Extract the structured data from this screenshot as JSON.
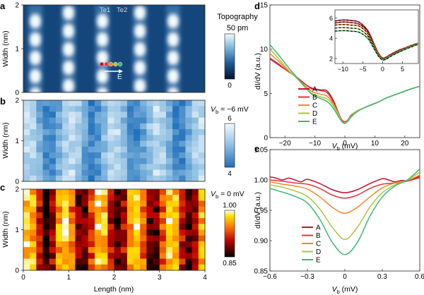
{
  "figure": {
    "panel_letters": [
      "a",
      "b",
      "c",
      "d",
      "e"
    ],
    "tip_labels": [
      "Te1",
      "Te2"
    ],
    "path_labels": {
      "start": "A",
      "end": "E"
    }
  },
  "colors": {
    "A": "#c8102e",
    "B": "#e0343c",
    "C": "#f08a24",
    "D": "#a8c83c",
    "E": "#3cb878",
    "dashed": "#000000",
    "axis": "#231f20"
  },
  "chart_data": [
    {
      "panel": "a",
      "type": "heatmap",
      "title": "",
      "colorbar_title": [
        "Topography",
        "50 pm"
      ],
      "colorbar_ticks": [
        "0"
      ],
      "xlim": [
        0,
        4
      ],
      "ylim": [
        0,
        2
      ],
      "ylabel": "Width (nm)",
      "yticks": [
        "0",
        "1",
        "2"
      ],
      "colormap": "blue"
    },
    {
      "panel": "b",
      "type": "heatmap",
      "colorbar_title": [
        "V",
        "b",
        " = −6 mV"
      ],
      "colorbar_ticks": [
        "6",
        "4"
      ],
      "xlim": [
        0,
        4
      ],
      "ylim": [
        0,
        2
      ],
      "ylabel": "Width (nm)",
      "yticks": [
        "0",
        "1",
        "2"
      ],
      "colormap": "blue"
    },
    {
      "panel": "c",
      "type": "heatmap",
      "colorbar_title": [
        "V",
        "b",
        " = 0 mV"
      ],
      "colorbar_ticks": [
        "1.00",
        "0.85"
      ],
      "xlim": [
        0,
        4
      ],
      "ylim": [
        0,
        2
      ],
      "xlabel": "Length (nm)",
      "ylabel": "Width (nm)",
      "xticks": [
        "0",
        "1",
        "2",
        "3",
        "4"
      ],
      "yticks": [
        "0",
        "1",
        "2"
      ],
      "colormap": "hot"
    },
    {
      "panel": "d",
      "type": "line",
      "xlabel": [
        "V",
        "b",
        " (mV)"
      ],
      "ylabel": "dI/dV (a.u.)",
      "xlim": [
        -25,
        25
      ],
      "ylim": [
        0,
        15
      ],
      "xticks": [
        "−20",
        "−10",
        "0",
        "10",
        "20"
      ],
      "yticks": [
        "0",
        "5",
        "10",
        "15"
      ],
      "legend": [
        "A",
        "B",
        "C",
        "D",
        "E"
      ],
      "series": [
        {
          "name": "A",
          "x": [
            -25,
            -22,
            -19,
            -16,
            -13,
            -11,
            -8,
            -6,
            -4,
            -2,
            -1,
            0,
            1,
            2,
            4,
            6,
            8,
            11,
            14,
            18,
            22,
            25
          ],
          "y": [
            8.9,
            8.2,
            7.5,
            6.8,
            6.0,
            5.6,
            5.4,
            5.3,
            4.3,
            2.7,
            2.0,
            1.8,
            2.0,
            2.5,
            3.0,
            3.3,
            3.6,
            4.0,
            4.5,
            5.0,
            5.5,
            5.8
          ]
        },
        {
          "name": "B",
          "x": [
            -25,
            -22,
            -19,
            -16,
            -13,
            -11,
            -8,
            -6,
            -4,
            -2,
            -1,
            0,
            1,
            2,
            4,
            6,
            8,
            11,
            14,
            18,
            22,
            25
          ],
          "y": [
            9.0,
            8.3,
            7.5,
            6.8,
            6.0,
            5.5,
            5.3,
            5.1,
            4.1,
            2.6,
            1.9,
            1.75,
            1.95,
            2.4,
            3.0,
            3.3,
            3.6,
            4.0,
            4.5,
            5.0,
            5.5,
            5.8
          ]
        },
        {
          "name": "C",
          "x": [
            -25,
            -22,
            -19,
            -16,
            -13,
            -11,
            -8,
            -6,
            -4,
            -2,
            -1,
            0,
            1,
            2,
            4,
            6,
            8,
            11,
            14,
            18,
            22,
            25
          ],
          "y": [
            9.5,
            8.6,
            7.6,
            6.7,
            5.8,
            5.2,
            4.9,
            4.7,
            3.9,
            2.6,
            1.9,
            1.7,
            1.95,
            2.4,
            3.0,
            3.3,
            3.6,
            4.0,
            4.5,
            5.0,
            5.5,
            5.8
          ]
        },
        {
          "name": "D",
          "x": [
            -25,
            -22,
            -19,
            -16,
            -13,
            -11,
            -8,
            -6,
            -4,
            -2,
            -1,
            0,
            1,
            2,
            4,
            6,
            8,
            11,
            14,
            18,
            22,
            25
          ],
          "y": [
            10.0,
            8.9,
            7.7,
            6.7,
            5.6,
            5.0,
            4.6,
            4.4,
            3.7,
            2.5,
            1.85,
            1.65,
            1.9,
            2.4,
            3.0,
            3.3,
            3.6,
            4.0,
            4.5,
            5.0,
            5.5,
            5.8
          ]
        },
        {
          "name": "E",
          "x": [
            -25,
            -22,
            -19,
            -16,
            -13,
            -11,
            -8,
            -6,
            -4,
            -2,
            -1,
            0,
            1,
            2,
            4,
            6,
            8,
            11,
            14,
            18,
            22,
            25
          ],
          "y": [
            10.5,
            9.3,
            8.0,
            6.8,
            5.6,
            4.9,
            4.4,
            4.1,
            3.4,
            2.3,
            1.8,
            1.6,
            1.85,
            2.3,
            2.9,
            3.3,
            3.6,
            4.0,
            4.5,
            5.0,
            5.5,
            5.8
          ]
        }
      ],
      "inset": {
        "xlim": [
          -12,
          9
        ],
        "ylim": [
          1.5,
          6.8
        ],
        "xticks": [
          "−10",
          "−5",
          "0",
          "5"
        ],
        "yticks": [
          "2",
          "4",
          "6"
        ],
        "series": [
          {
            "name": "A",
            "x": [
              -12,
              -10,
              -8,
              -6,
              -4,
              -3,
              -2,
              -1,
              0,
              1,
              2,
              4,
              6,
              8,
              9
            ],
            "y": [
              5.7,
              5.8,
              5.75,
              5.6,
              4.9,
              4.2,
              3.3,
              2.5,
              2.05,
              2.15,
              2.4,
              2.8,
              3.1,
              3.4,
              3.5
            ]
          },
          {
            "name": "B",
            "x": [
              -12,
              -10,
              -8,
              -6,
              -4,
              -3,
              -2,
              -1,
              0,
              1,
              2,
              4,
              6,
              8,
              9
            ],
            "y": [
              5.5,
              5.6,
              5.55,
              5.4,
              4.8,
              4.1,
              3.2,
              2.45,
              2.0,
              2.1,
              2.35,
              2.75,
              3.1,
              3.4,
              3.5
            ]
          },
          {
            "name": "C",
            "x": [
              -12,
              -10,
              -8,
              -6,
              -4,
              -3,
              -2,
              -1,
              0,
              1,
              2,
              4,
              6,
              8,
              9
            ],
            "y": [
              5.3,
              5.35,
              5.3,
              5.2,
              4.6,
              3.9,
              3.1,
              2.4,
              1.95,
              2.05,
              2.3,
              2.7,
              3.05,
              3.35,
              3.5
            ]
          },
          {
            "name": "D",
            "x": [
              -12,
              -10,
              -8,
              -6,
              -4,
              -3,
              -2,
              -1,
              0,
              1,
              2,
              4,
              6,
              8,
              9
            ],
            "y": [
              5.0,
              5.05,
              5.0,
              4.9,
              4.35,
              3.75,
              3.0,
              2.3,
              1.9,
              2.0,
              2.25,
              2.65,
              3.0,
              3.3,
              3.45
            ]
          },
          {
            "name": "E",
            "x": [
              -12,
              -10,
              -8,
              -6,
              -4,
              -3,
              -2,
              -1,
              0,
              1,
              2,
              4,
              6,
              8,
              9
            ],
            "y": [
              4.7,
              4.75,
              4.7,
              4.6,
              4.1,
              3.55,
              2.85,
              2.2,
              1.85,
              1.95,
              2.2,
              2.6,
              2.95,
              3.25,
              3.4
            ]
          }
        ]
      }
    },
    {
      "panel": "e",
      "type": "line",
      "xlabel": [
        "V",
        "b",
        " (mV)"
      ],
      "ylabel": "dI/dV (a.u.)",
      "xlim": [
        -0.6,
        0.6
      ],
      "ylim": [
        0.85,
        1.05
      ],
      "xticks": [
        "−0.6",
        "−0.3",
        "0",
        "0.3",
        "0.6"
      ],
      "yticks": [
        "0.85",
        "0.90",
        "0.95",
        "1.00",
        "1.05"
      ],
      "legend": [
        "A",
        "B",
        "C",
        "D",
        "E"
      ],
      "series": [
        {
          "name": "A",
          "x": [
            -0.6,
            -0.55,
            -0.5,
            -0.45,
            -0.4,
            -0.35,
            -0.3,
            -0.2,
            -0.1,
            0,
            0.1,
            0.2,
            0.3,
            0.35,
            0.4,
            0.45,
            0.5,
            0.55,
            0.6
          ],
          "y": [
            1.005,
            1.003,
            1.0,
            1.003,
            1.0,
            0.997,
            1.001,
            0.994,
            0.984,
            0.979,
            0.984,
            0.994,
            1.002,
            1.0,
            0.997,
            0.999,
            0.999,
            1.002,
            1.006
          ]
        },
        {
          "name": "B",
          "x": [
            -0.6,
            -0.5,
            -0.4,
            -0.3,
            -0.2,
            -0.1,
            0,
            0.1,
            0.2,
            0.3,
            0.4,
            0.5,
            0.6
          ],
          "y": [
            1.0,
            0.998,
            0.995,
            0.993,
            0.986,
            0.975,
            0.97,
            0.975,
            0.986,
            0.993,
            0.995,
            0.998,
            1.004
          ]
        },
        {
          "name": "C",
          "x": [
            -0.6,
            -0.5,
            -0.4,
            -0.3,
            -0.2,
            -0.1,
            0,
            0.1,
            0.2,
            0.3,
            0.4,
            0.5,
            0.6
          ],
          "y": [
            0.997,
            0.993,
            0.99,
            0.985,
            0.972,
            0.955,
            0.945,
            0.955,
            0.972,
            0.987,
            0.995,
            0.999,
            1.008
          ]
        },
        {
          "name": "D",
          "x": [
            -0.6,
            -0.5,
            -0.4,
            -0.3,
            -0.2,
            -0.1,
            0,
            0.1,
            0.2,
            0.3,
            0.4,
            0.5,
            0.6
          ],
          "y": [
            0.992,
            0.988,
            0.982,
            0.973,
            0.952,
            0.922,
            0.902,
            0.922,
            0.955,
            0.979,
            0.992,
            1.0,
            1.013
          ]
        },
        {
          "name": "E",
          "x": [
            -0.6,
            -0.5,
            -0.4,
            -0.3,
            -0.2,
            -0.1,
            0,
            0.1,
            0.2,
            0.3,
            0.4,
            0.5,
            0.6
          ],
          "y": [
            0.986,
            0.98,
            0.973,
            0.962,
            0.935,
            0.897,
            0.877,
            0.897,
            0.94,
            0.972,
            0.99,
            1.0,
            1.018
          ]
        }
      ]
    }
  ]
}
